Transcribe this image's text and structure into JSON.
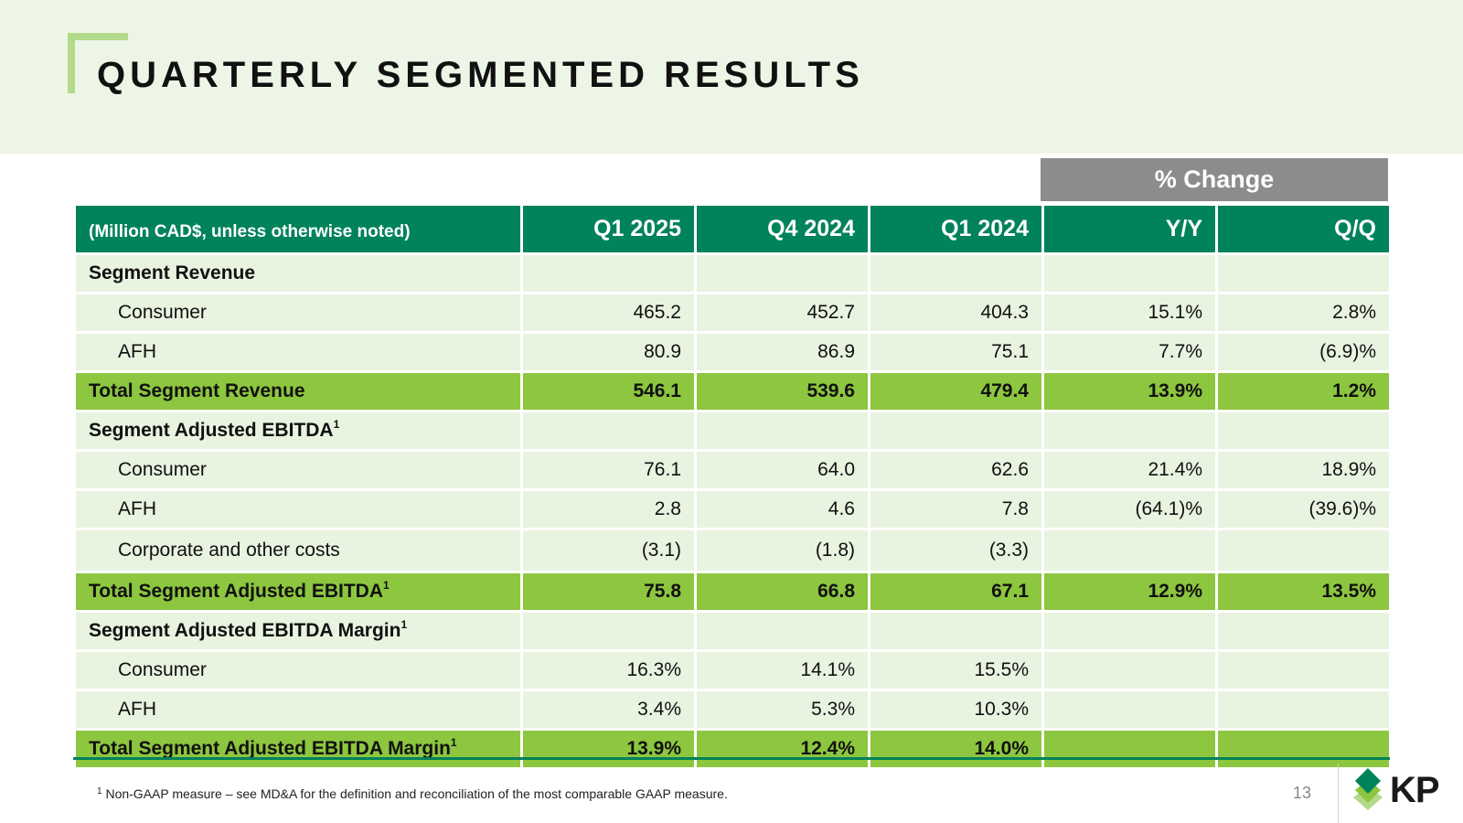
{
  "slide": {
    "title": "QUARTERLY SEGMENTED RESULTS",
    "page_number": "13",
    "logo_text": "KP",
    "footnote": {
      "marker": "1",
      "text": "Non-GAAP measure – see MD&A for the definition and reconciliation of the most comparable GAAP measure."
    }
  },
  "colors": {
    "header_band": "#edf5e6",
    "bracket": "#b3d98a",
    "table_header": "#00825a",
    "pct_change_header": "#8c8c8c",
    "row_fill": "#e8f3e0",
    "total_fill": "#8dc63f"
  },
  "table": {
    "pct_change_label": "% Change",
    "headers": [
      "(Million CAD$, unless otherwise noted)",
      "Q1 2025",
      "Q4 2024",
      "Q1 2024",
      "Y/Y",
      "Q/Q"
    ],
    "rows": [
      {
        "label": "Segment Revenue",
        "sup": "",
        "cells": [
          "",
          "",
          "",
          "",
          ""
        ]
      },
      {
        "label": "Consumer",
        "sup": "",
        "cells": [
          "465.2",
          "452.7",
          "404.3",
          "15.1%",
          "2.8%"
        ]
      },
      {
        "label": "AFH",
        "sup": "",
        "cells": [
          "80.9",
          "86.9",
          "75.1",
          "7.7%",
          "(6.9)%"
        ]
      },
      {
        "label": "Total Segment Revenue",
        "sup": "",
        "cells": [
          "546.1",
          "539.6",
          "479.4",
          "13.9%",
          "1.2%"
        ]
      },
      {
        "label": "Segment Adjusted EBITDA",
        "sup": "1",
        "cells": [
          "",
          "",
          "",
          "",
          ""
        ]
      },
      {
        "label": "Consumer",
        "sup": "",
        "cells": [
          "76.1",
          "64.0",
          "62.6",
          "21.4%",
          "18.9%"
        ]
      },
      {
        "label": "AFH",
        "sup": "",
        "cells": [
          "2.8",
          "4.6",
          "7.8",
          "(64.1)%",
          "(39.6)%"
        ]
      },
      {
        "label": "Corporate and other costs",
        "sup": "",
        "cells": [
          "(3.1)",
          "(1.8)",
          "(3.3)",
          "",
          ""
        ]
      },
      {
        "label": "Total Segment Adjusted EBITDA",
        "sup": "1",
        "cells": [
          "75.8",
          "66.8",
          "67.1",
          "12.9%",
          "13.5%"
        ]
      },
      {
        "label": "Segment Adjusted EBITDA Margin",
        "sup": "1",
        "cells": [
          "",
          "",
          "",
          "",
          ""
        ]
      },
      {
        "label": "Consumer",
        "sup": "",
        "cells": [
          "16.3%",
          "14.1%",
          "15.5%",
          "",
          ""
        ]
      },
      {
        "label": "AFH",
        "sup": "",
        "cells": [
          "3.4%",
          "5.3%",
          "10.3%",
          "",
          ""
        ]
      },
      {
        "label": "Total Segment Adjusted EBITDA Margin",
        "sup": "1",
        "cells": [
          "13.9%",
          "12.4%",
          "14.0%",
          "",
          ""
        ]
      }
    ]
  }
}
